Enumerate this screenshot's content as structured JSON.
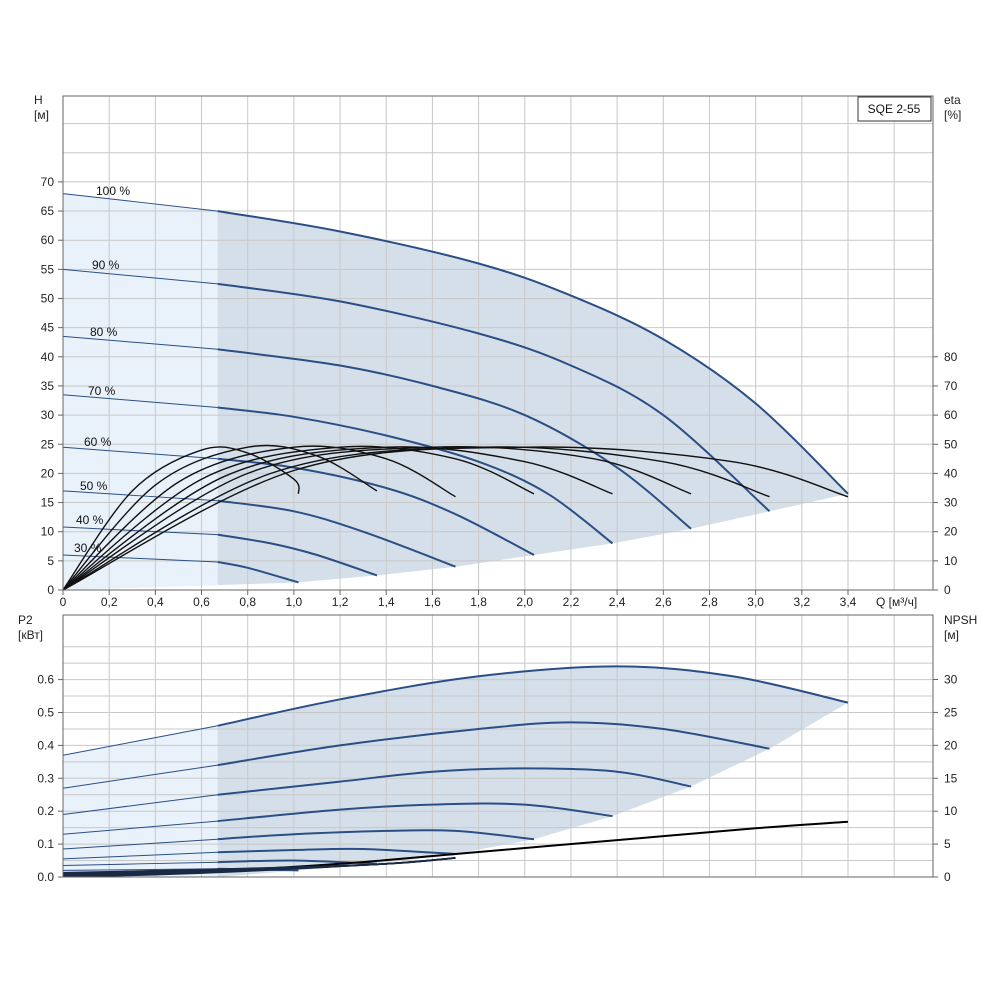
{
  "chart_data": [
    {
      "type": "line",
      "model": "SQE 2-55",
      "xlabel": "Q [м³/ч]",
      "ylabel": "H\n[м]",
      "ylabel_right": "eta\n[%]",
      "xlim": [
        0,
        3.4
      ],
      "ylim": [
        0,
        70
      ],
      "ylim_right": [
        0,
        80
      ],
      "x_ticks": [
        "0",
        "0,2",
        "0,4",
        "0,6",
        "0,8",
        "1,0",
        "1,2",
        "1,4",
        "1,6",
        "1,8",
        "2,0",
        "2,2",
        "2,4",
        "2,6",
        "2,8",
        "3,0",
        "3,2",
        "3,4"
      ],
      "y_ticks": [
        "0",
        "5",
        "10",
        "15",
        "20",
        "25",
        "30",
        "35",
        "40",
        "45",
        "50",
        "55",
        "60",
        "65",
        "70"
      ],
      "y_ticks_right": [
        "0",
        "10",
        "20",
        "30",
        "40",
        "50",
        "60",
        "70",
        "80"
      ],
      "grid": true,
      "colors": {
        "curve": "#2a4f85",
        "fill": "#d5dfea",
        "fill_light": "#e9f2fb",
        "eta": "#111111",
        "grid": "#c8c8c8"
      },
      "light_region_x": [
        0,
        0.67
      ],
      "series": [
        {
          "name": "100 %",
          "x": [
            0,
            0.67,
            1.2,
            1.8,
            2.2,
            2.6,
            3.0,
            3.4
          ],
          "y": [
            68,
            65,
            61.5,
            56,
            50.5,
            43,
            32,
            16.5
          ]
        },
        {
          "name": "90 %",
          "x": [
            0,
            0.67,
            1.2,
            1.8,
            2.2,
            2.6,
            3.06
          ],
          "y": [
            55,
            52.5,
            49.5,
            44,
            38.5,
            30,
            13.5
          ]
        },
        {
          "name": "80 %",
          "x": [
            0,
            0.67,
            1.2,
            1.6,
            2.0,
            2.4,
            2.72
          ],
          "y": [
            43.5,
            41.3,
            38.5,
            35,
            30,
            21,
            10.5
          ]
        },
        {
          "name": "70 %",
          "x": [
            0,
            0.67,
            1.0,
            1.4,
            1.8,
            2.1,
            2.38
          ],
          "y": [
            33.5,
            31.3,
            29.7,
            26.5,
            22,
            16.5,
            8
          ]
        },
        {
          "name": "60 %",
          "x": [
            0,
            0.67,
            1.0,
            1.4,
            1.7,
            2.04
          ],
          "y": [
            24.5,
            22.5,
            21,
            17.5,
            13,
            6
          ]
        },
        {
          "name": "50 %",
          "x": [
            0,
            0.67,
            1.0,
            1.3,
            1.7
          ],
          "y": [
            17,
            15.3,
            13.5,
            10,
            4
          ]
        },
        {
          "name": "40 %",
          "x": [
            0,
            0.67,
            0.9,
            1.1,
            1.36
          ],
          "y": [
            10.8,
            9.5,
            8,
            6,
            2.5
          ]
        },
        {
          "name": "30 %",
          "x": [
            0,
            0.67,
            0.8,
            1.02
          ],
          "y": [
            6,
            4.8,
            3.8,
            1.3
          ]
        }
      ],
      "eta_right": [
        {
          "x": [
            0,
            0.3,
            0.6,
            0.8,
            1.0,
            1.02
          ],
          "y": [
            0,
            34,
            48,
            47,
            38,
            33
          ]
        },
        {
          "x": [
            0,
            0.4,
            0.8,
            1.1,
            1.36
          ],
          "y": [
            0,
            36,
            49,
            46,
            34
          ]
        },
        {
          "x": [
            0,
            0.5,
            1.0,
            1.4,
            1.7
          ],
          "y": [
            0,
            37,
            49,
            45,
            32
          ]
        },
        {
          "x": [
            0,
            0.6,
            1.2,
            1.7,
            2.04
          ],
          "y": [
            0,
            38,
            49,
            45,
            33
          ]
        },
        {
          "x": [
            0,
            0.7,
            1.4,
            2.0,
            2.38
          ],
          "y": [
            0,
            39,
            49,
            44,
            33
          ]
        },
        {
          "x": [
            0,
            0.8,
            1.6,
            2.3,
            2.72
          ],
          "y": [
            0,
            40,
            49,
            45,
            33
          ]
        },
        {
          "x": [
            0,
            0.9,
            1.8,
            2.6,
            3.06
          ],
          "y": [
            0,
            40,
            49,
            44,
            32
          ]
        },
        {
          "x": [
            0,
            1.0,
            2.0,
            2.9,
            3.4
          ],
          "y": [
            0,
            41,
            49,
            44,
            32
          ]
        }
      ]
    },
    {
      "type": "line",
      "ylabel": "P2\n[кВт]",
      "ylabel_right": "NPSH\n[м]",
      "xlim": [
        0,
        3.4
      ],
      "ylim": [
        0,
        0.6
      ],
      "ylim_right": [
        0,
        30
      ],
      "y_ticks": [
        "0.0",
        "0.1",
        "0.2",
        "0.3",
        "0.4",
        "0.5",
        "0.6"
      ],
      "y_ticks_right": [
        "0",
        "5",
        "10",
        "15",
        "20",
        "25",
        "30"
      ],
      "grid": true,
      "series": [
        {
          "name": "100 %",
          "x": [
            0,
            0.67,
            1.2,
            1.8,
            2.4,
            2.9,
            3.4
          ],
          "y": [
            0.37,
            0.46,
            0.54,
            0.61,
            0.64,
            0.61,
            0.53
          ]
        },
        {
          "name": "90 %",
          "x": [
            0,
            0.67,
            1.2,
            1.8,
            2.2,
            2.6,
            3.06
          ],
          "y": [
            0.27,
            0.34,
            0.4,
            0.45,
            0.47,
            0.45,
            0.39
          ]
        },
        {
          "name": "80 %",
          "x": [
            0,
            0.67,
            1.2,
            1.6,
            2.0,
            2.4,
            2.72
          ],
          "y": [
            0.19,
            0.25,
            0.29,
            0.32,
            0.33,
            0.32,
            0.275
          ]
        },
        {
          "name": "70 %",
          "x": [
            0,
            0.67,
            1.2,
            1.6,
            2.0,
            2.38
          ],
          "y": [
            0.13,
            0.17,
            0.205,
            0.22,
            0.22,
            0.185
          ]
        },
        {
          "name": "60 %",
          "x": [
            0,
            0.67,
            1.0,
            1.4,
            1.7,
            2.04
          ],
          "y": [
            0.085,
            0.115,
            0.13,
            0.14,
            0.14,
            0.115
          ]
        },
        {
          "name": "50 %",
          "x": [
            0,
            0.67,
            1.0,
            1.3,
            1.7
          ],
          "y": [
            0.055,
            0.075,
            0.082,
            0.085,
            0.07
          ]
        },
        {
          "name": "40 %",
          "x": [
            0,
            0.67,
            1.0,
            1.36
          ],
          "y": [
            0.035,
            0.045,
            0.05,
            0.04
          ]
        },
        {
          "name": "30 %",
          "x": [
            0,
            0.67,
            1.02
          ],
          "y": [
            0.02,
            0.025,
            0.02
          ]
        }
      ],
      "npsh_right": {
        "x": [
          0,
          0.6,
          1.2,
          1.8,
          2.4,
          3.0,
          3.4
        ],
        "y": [
          0.2,
          0.8,
          2.0,
          3.8,
          5.6,
          7.4,
          8.4
        ]
      }
    }
  ]
}
